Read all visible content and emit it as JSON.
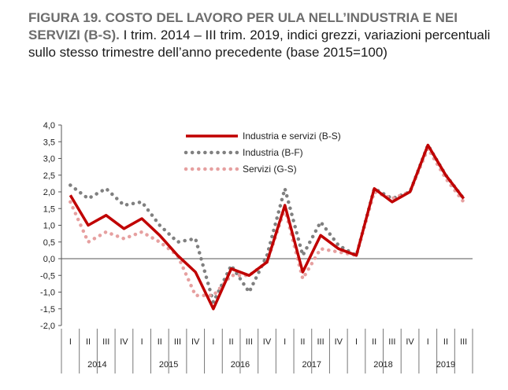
{
  "caption": {
    "label": "FIGURA 19. COSTO DEL LAVORO PER ULA NELL’INDUSTRIA E NEI SERVIZI (B-S).",
    "text": " I trim. 2014 – III trim. 2019, indici grezzi, variazioni percentuali sullo stesso trimestre dell’anno precedente (base 2015=100)"
  },
  "chart_data": {
    "type": "line",
    "ylim": [
      -2.0,
      4.0
    ],
    "yticks": [
      "4,0",
      "3,5",
      "3,0",
      "2,5",
      "2,0",
      "1,5",
      "1,0",
      "0,5",
      "0,0",
      "-0,5",
      "-1,0",
      "-1,5",
      "-2,0"
    ],
    "yticks_values": [
      4.0,
      3.5,
      3.0,
      2.5,
      2.0,
      1.5,
      1.0,
      0.5,
      0.0,
      -0.5,
      -1.0,
      -1.5,
      -2.0
    ],
    "categories": [
      "I",
      "II",
      "III",
      "IV",
      "I",
      "II",
      "III",
      "IV",
      "I",
      "II",
      "III",
      "IV",
      "I",
      "II",
      "III",
      "IV",
      "I",
      "II",
      "III",
      "IV",
      "I",
      "II",
      "III"
    ],
    "years": [
      {
        "label": "2014",
        "count": 4
      },
      {
        "label": "2015",
        "count": 4
      },
      {
        "label": "2016",
        "count": 4
      },
      {
        "label": "2017",
        "count": 4
      },
      {
        "label": "2018",
        "count": 4
      },
      {
        "label": "2019",
        "count": 3
      }
    ],
    "legend_position": "top-center",
    "grid": false,
    "series": [
      {
        "name": "Industria e servizi (B-S)",
        "color": "#c00000",
        "style": "solid",
        "values": [
          1.9,
          1.0,
          1.3,
          0.9,
          1.2,
          0.7,
          0.1,
          -0.4,
          -1.5,
          -0.3,
          -0.5,
          -0.1,
          1.6,
          -0.4,
          0.7,
          0.3,
          0.1,
          2.1,
          1.7,
          2.0,
          3.4,
          2.5,
          1.8
        ]
      },
      {
        "name": "Industria (B-F)",
        "color": "#808080",
        "style": "dotted",
        "values": [
          2.2,
          1.8,
          2.1,
          1.6,
          1.7,
          1.0,
          0.5,
          0.6,
          -1.3,
          -0.2,
          -1.0,
          0.1,
          2.1,
          0.1,
          1.1,
          0.4,
          0.1,
          2.1,
          1.8,
          2.0,
          3.4,
          2.5,
          1.8
        ]
      },
      {
        "name": "Servizi (G-S)",
        "color": "#e6a0a0",
        "style": "dotted",
        "values": [
          1.7,
          0.5,
          0.8,
          0.6,
          0.8,
          0.5,
          0.1,
          -1.1,
          -1.1,
          -0.5,
          -0.5,
          -0.1,
          1.5,
          -0.6,
          0.3,
          0.2,
          0.1,
          2.0,
          1.8,
          2.0,
          3.3,
          2.4,
          1.7
        ]
      }
    ]
  }
}
